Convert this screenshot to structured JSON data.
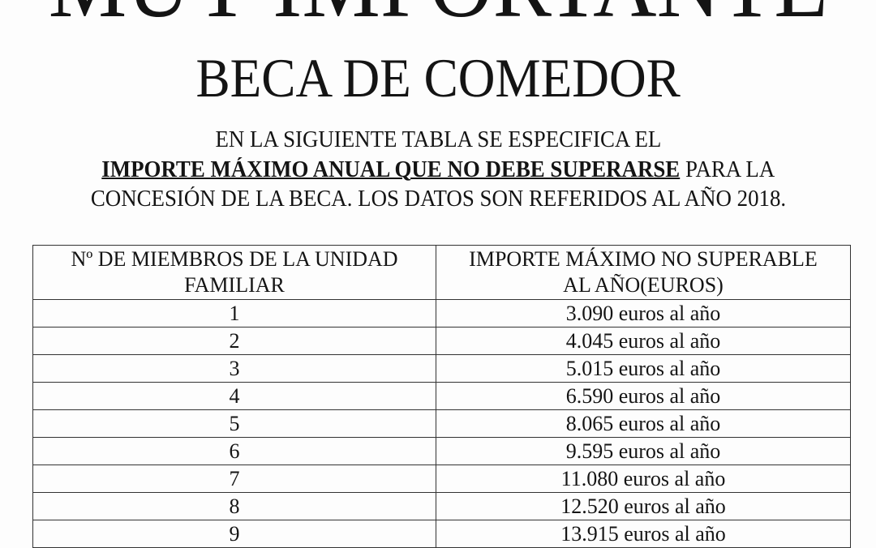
{
  "title": "MUY IMPORTANTE",
  "subtitle": "BECA DE COMEDOR",
  "intro": {
    "line1": "EN LA SIGUIENTE TABLA SE ESPECIFICA EL",
    "line2_emphasis": "IMPORTE MÁXIMO ANUAL QUE NO DEBE SUPERARSE",
    "line2_rest": " PARA LA",
    "line3": "CONCESIÓN DE LA BECA. LOS DATOS SON REFERIDOS AL AÑO 2018."
  },
  "table": {
    "headers": [
      {
        "line1": "Nº DE MIEMBROS DE LA UNIDAD",
        "line2": "FAMILIAR"
      },
      {
        "line1": "IMPORTE MÁXIMO NO SUPERABLE",
        "line2": "AL AÑO(EUROS)"
      }
    ],
    "rows": [
      {
        "members": "1",
        "amount": "3.090 euros al año"
      },
      {
        "members": "2",
        "amount": "4.045 euros al año"
      },
      {
        "members": "3",
        "amount": "5.015 euros al año"
      },
      {
        "members": "4",
        "amount": "6.590 euros al año"
      },
      {
        "members": "5",
        "amount": "8.065 euros al año"
      },
      {
        "members": "6",
        "amount": "9.595 euros al año"
      },
      {
        "members": "7",
        "amount": "11.080 euros al año"
      },
      {
        "members": "8",
        "amount": "12.520 euros al año"
      },
      {
        "members": "9",
        "amount": "13.915 euros al año"
      }
    ]
  }
}
